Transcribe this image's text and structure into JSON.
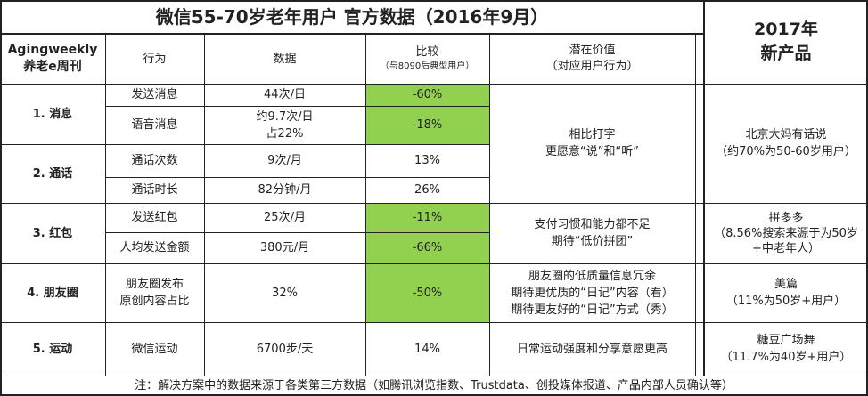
{
  "title": "微信55-70岁老年用户 官方数据（2016年9月）",
  "new_products_header": "2017年\n新产品",
  "header": {
    "brand": "Agingweekly\n养老e周刊",
    "behavior": "行为",
    "data": "数据",
    "compare_title": "比较",
    "compare_sub": "（与8090后典型用户）",
    "value_title": "潜在价值",
    "value_sub": "（对应用户行为）"
  },
  "categories": {
    "message": "1. 消息",
    "call": "2. 通话",
    "redpacket": "3. 红包",
    "moments": "4. 朋友圈",
    "sport": "5. 运动"
  },
  "rows": [
    {
      "behavior": "发送消息",
      "data": "44次/日",
      "compare": "-60%"
    },
    {
      "behavior": "语音消息",
      "data": "约9.7次/日\n占22%",
      "compare": "-18%"
    },
    {
      "behavior": "通话次数",
      "data": "9次/月",
      "compare": "13%"
    },
    {
      "behavior": "通话时长",
      "data": "82分钟/月",
      "compare": "26%"
    },
    {
      "behavior": "发送红包",
      "data": "25次/月",
      "compare": "-11%"
    },
    {
      "behavior": "人均发送金额",
      "data": "380元/月",
      "compare": "-66%"
    },
    {
      "behavior": "朋友圈发布\n原创内容占比",
      "data": "32%",
      "compare": "-50%"
    },
    {
      "behavior": "微信运动",
      "data": "6700步/天",
      "compare": "14%"
    }
  ],
  "values": {
    "message_call": "相比打字\n更愿意“说”和“听”",
    "redpacket": "支付习惯和能力都不足\n期待“低价拼团”",
    "moments": "朋友圈的低质量信息冗余\n期待更优质的“日记”内容（看）\n期待更友好的“日记”方式（秀）",
    "sport": "日常运动强度和分享意愿更高"
  },
  "products": {
    "p1": "北京大妈有话说\n（约70%为50-60岁用户）",
    "p2": "拼多多\n（8.56%搜索来源于为50岁\n+中老年人）",
    "p3": "美篇\n（11%为50岁+用户）",
    "p4": "糖豆广场舞\n（11.7%为40岁+用户）"
  },
  "footnote": "注：解决方案中的数据来源于各类第三方数据（如腾讯浏览指数、Trustdata、创投媒体报道、产品内部人员确认等）",
  "colors": {
    "highlight": "#92d050",
    "border": "#222222"
  }
}
